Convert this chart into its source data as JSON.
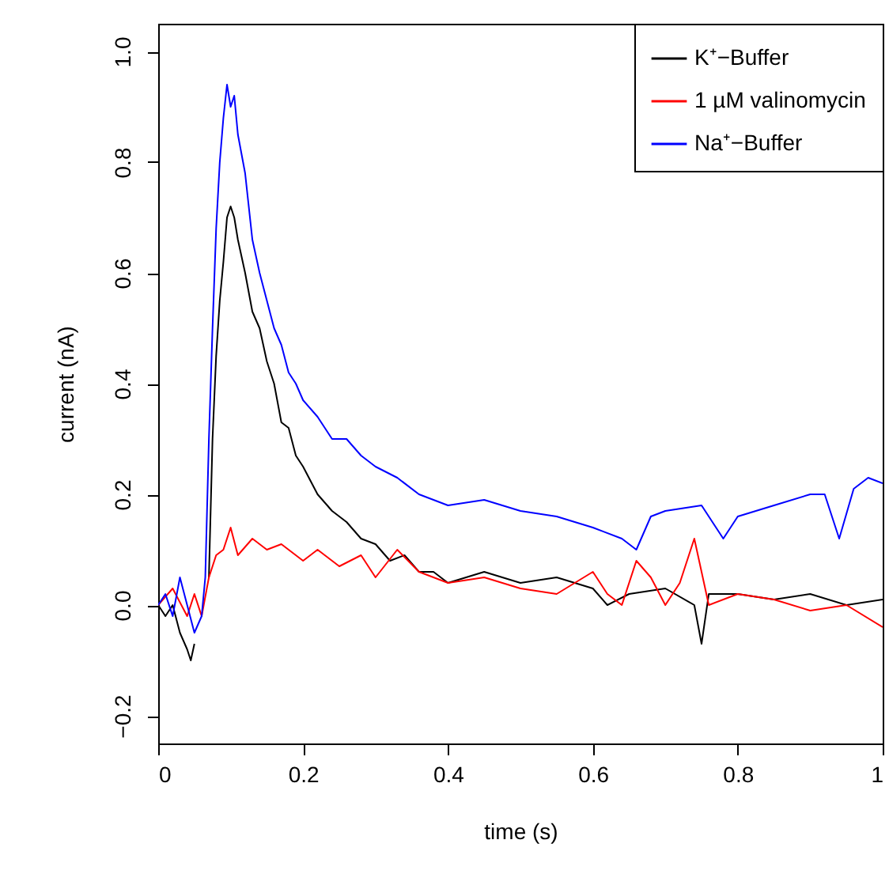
{
  "chart_data": {
    "type": "line",
    "xlabel": "time (s)",
    "ylabel": "current (nA)",
    "xlim": [
      0,
      1
    ],
    "xticks": [
      {
        "value": 0,
        "label": "0"
      },
      {
        "value": 0.2,
        "label": "0.2"
      },
      {
        "value": 0.4,
        "label": "0.4"
      },
      {
        "value": 0.6,
        "label": "0.6"
      },
      {
        "value": 0.8,
        "label": "0.8"
      },
      {
        "value": 1,
        "label": "1"
      }
    ],
    "ylim": [
      -0.25,
      1.05
    ],
    "yticks": [
      {
        "value": -0.2,
        "label": "−0.2"
      },
      {
        "value": 0,
        "label": "0.0"
      },
      {
        "value": 0.2,
        "label": "0.2"
      },
      {
        "value": 0.4,
        "label": "0.4"
      },
      {
        "value": 0.6,
        "label": "0.6"
      },
      {
        "value": 0.8,
        "label": "0.8"
      },
      {
        "value": 1,
        "label": "1.0"
      }
    ],
    "grid": false,
    "legend": "top right",
    "line_style": "solid",
    "marker": "none",
    "series": [
      {
        "name": "K⁺−Buffer",
        "color": "#000000",
        "x": [
          0,
          0.01,
          0.02,
          0.03,
          0.04,
          0.045,
          0.05,
          0.055,
          0.062,
          0.07,
          0.075,
          0.08,
          0.085,
          0.09,
          0.095,
          0.1,
          0.105,
          0.11,
          0.12,
          0.13,
          0.14,
          0.15,
          0.16,
          0.17,
          0.18,
          0.19,
          0.2,
          0.22,
          0.24,
          0.26,
          0.28,
          0.3,
          0.32,
          0.34,
          0.36,
          0.38,
          0.4,
          0.45,
          0.5,
          0.55,
          0.6,
          0.62,
          0.65,
          0.7,
          0.74,
          0.75,
          0.76,
          0.8,
          0.85,
          0.9,
          0.95,
          1.0
        ],
        "values": [
          0,
          -0.02,
          0.0,
          -0.05,
          -0.08,
          -0.1,
          -0.07,
          null,
          null,
          0.05,
          0.3,
          0.45,
          0.55,
          0.62,
          0.7,
          0.72,
          0.7,
          0.66,
          0.6,
          0.53,
          0.5,
          0.44,
          0.4,
          0.33,
          0.32,
          0.27,
          0.25,
          0.2,
          0.17,
          0.15,
          0.12,
          0.11,
          0.08,
          0.09,
          0.06,
          0.06,
          0.04,
          0.06,
          0.04,
          0.05,
          0.03,
          0.0,
          0.02,
          0.03,
          0.0,
          -0.07,
          0.02,
          0.02,
          0.01,
          0.02,
          0.0,
          0.01
        ]
      },
      {
        "name": "1 µM valinomycin",
        "color": "#ff0000",
        "x": [
          0,
          0.02,
          0.04,
          0.05,
          0.06,
          0.07,
          0.08,
          0.09,
          0.1,
          0.11,
          0.13,
          0.15,
          0.17,
          0.2,
          0.22,
          0.25,
          0.28,
          0.3,
          0.33,
          0.36,
          0.4,
          0.45,
          0.5,
          0.55,
          0.6,
          0.62,
          0.64,
          0.66,
          0.68,
          0.7,
          0.72,
          0.74,
          0.76,
          0.8,
          0.85,
          0.9,
          0.95,
          1.0
        ],
        "values": [
          0.0,
          0.03,
          -0.02,
          0.02,
          -0.02,
          0.05,
          0.09,
          0.1,
          0.14,
          0.09,
          0.12,
          0.1,
          0.11,
          0.08,
          0.1,
          0.07,
          0.09,
          0.05,
          0.1,
          0.06,
          0.04,
          0.05,
          0.03,
          0.02,
          0.06,
          0.02,
          0.0,
          0.08,
          0.05,
          0.0,
          0.04,
          0.12,
          0.0,
          0.02,
          0.01,
          -0.01,
          0.0,
          -0.04
        ]
      },
      {
        "name": "Na⁺−Buffer",
        "color": "#0000ff",
        "x": [
          0,
          0.01,
          0.02,
          0.03,
          0.04,
          0.05,
          0.06,
          0.065,
          0.07,
          0.075,
          0.08,
          0.085,
          0.09,
          0.095,
          0.1,
          0.105,
          0.11,
          0.12,
          0.13,
          0.14,
          0.15,
          0.16,
          0.17,
          0.18,
          0.19,
          0.2,
          0.22,
          0.24,
          0.26,
          0.28,
          0.3,
          0.33,
          0.36,
          0.4,
          0.45,
          0.5,
          0.55,
          0.6,
          0.64,
          0.66,
          0.68,
          0.7,
          0.75,
          0.78,
          0.8,
          0.85,
          0.9,
          0.92,
          0.94,
          0.96,
          0.98,
          1.0
        ],
        "values": [
          0.0,
          0.02,
          -0.02,
          0.05,
          0.0,
          -0.05,
          -0.02,
          0.05,
          0.3,
          0.5,
          0.68,
          0.8,
          0.88,
          0.94,
          0.9,
          0.92,
          0.85,
          0.78,
          0.66,
          0.6,
          0.55,
          0.5,
          0.47,
          0.42,
          0.4,
          0.37,
          0.34,
          0.3,
          0.3,
          0.27,
          0.25,
          0.23,
          0.2,
          0.18,
          0.19,
          0.17,
          0.16,
          0.14,
          0.12,
          0.1,
          0.16,
          0.17,
          0.18,
          0.12,
          0.16,
          0.18,
          0.2,
          0.2,
          0.12,
          0.21,
          0.23,
          0.22
        ]
      }
    ]
  }
}
